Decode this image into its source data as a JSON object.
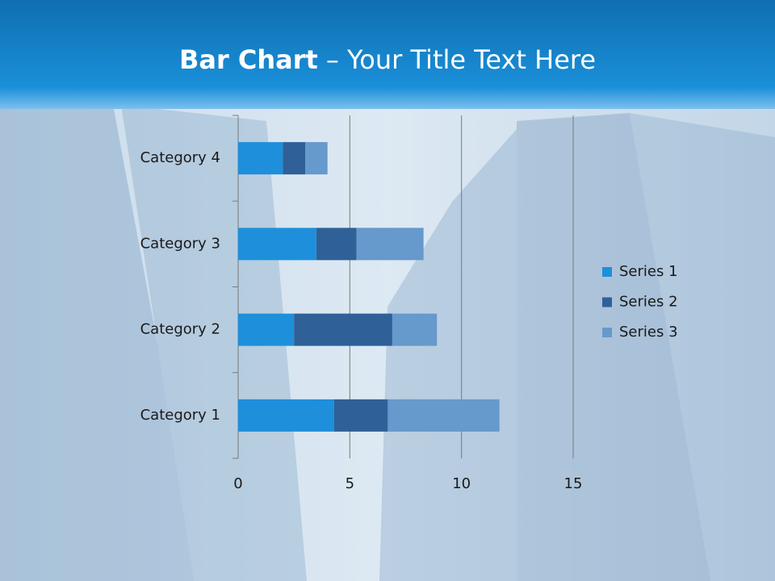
{
  "chart_data": {
    "type": "stacked-bar-horizontal",
    "title": {
      "bold": "Bar Chart",
      "rest": "– Your Title Text Here"
    },
    "categories": [
      "Category 1",
      "Category 2",
      "Category 3",
      "Category 4"
    ],
    "series": [
      {
        "name": "Series 1",
        "color": "#1e8fdb",
        "values": [
          4.3,
          2.5,
          3.5,
          2.0
        ]
      },
      {
        "name": "Series 2",
        "color": "#2f6098",
        "values": [
          2.4,
          4.4,
          1.8,
          1.0
        ]
      },
      {
        "name": "Series 3",
        "color": "#6699cc",
        "values": [
          5.0,
          2.0,
          3.0,
          1.0
        ]
      }
    ],
    "xlim": [
      0,
      15
    ],
    "xticks": [
      0,
      5,
      10,
      15
    ],
    "grid": true,
    "legend": "right"
  }
}
